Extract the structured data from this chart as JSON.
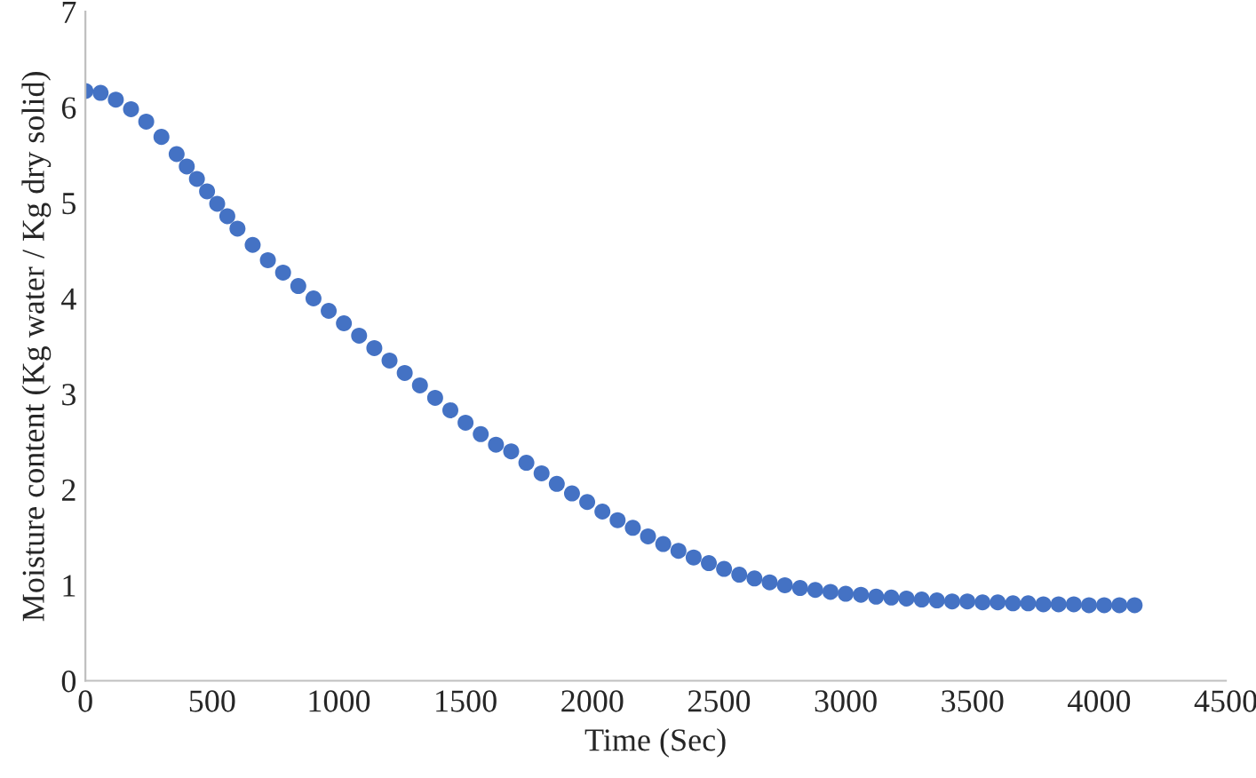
{
  "chart_data": {
    "type": "scatter",
    "xlabel": "Time (Sec)",
    "ylabel": "Moisture content (Kg water / Kg dry solid)",
    "xlim": [
      0,
      4500
    ],
    "xticks": [
      0,
      500,
      1000,
      1500,
      2000,
      2500,
      3000,
      3500,
      4000,
      4500
    ],
    "ylim": [
      0,
      7
    ],
    "yticks": [
      0,
      1,
      2,
      3,
      4,
      5,
      6,
      7
    ],
    "grid": false,
    "marker": "circle",
    "series": [
      {
        "color": "#4472c4",
        "x": [
          0,
          60,
          120,
          180,
          240,
          300,
          360,
          400,
          440,
          480,
          520,
          560,
          600,
          660,
          720,
          780,
          840,
          900,
          960,
          1020,
          1080,
          1140,
          1200,
          1260,
          1320,
          1380,
          1440,
          1500,
          1560,
          1620,
          1680,
          1740,
          1800,
          1860,
          1920,
          1980,
          2040,
          2100,
          2160,
          2220,
          2280,
          2340,
          2400,
          2460,
          2520,
          2580,
          2640,
          2700,
          2760,
          2820,
          2880,
          2940,
          3000,
          3060,
          3120,
          3180,
          3240,
          3300,
          3360,
          3420,
          3480,
          3540,
          3600,
          3660,
          3720,
          3780,
          3840,
          3900,
          3960,
          4020,
          4080,
          4140
        ],
        "values": [
          6.17,
          6.15,
          6.08,
          5.98,
          5.85,
          5.69,
          5.51,
          5.38,
          5.25,
          5.12,
          4.99,
          4.86,
          4.73,
          4.56,
          4.4,
          4.27,
          4.13,
          4.0,
          3.87,
          3.74,
          3.61,
          3.48,
          3.35,
          3.22,
          3.09,
          2.96,
          2.83,
          2.7,
          2.58,
          2.47,
          2.4,
          2.28,
          2.17,
          2.06,
          1.96,
          1.87,
          1.77,
          1.68,
          1.6,
          1.51,
          1.43,
          1.36,
          1.29,
          1.23,
          1.17,
          1.11,
          1.07,
          1.03,
          1.0,
          0.97,
          0.95,
          0.93,
          0.91,
          0.9,
          0.88,
          0.87,
          0.86,
          0.85,
          0.84,
          0.83,
          0.83,
          0.82,
          0.82,
          0.81,
          0.81,
          0.8,
          0.8,
          0.8,
          0.79,
          0.79,
          0.79,
          0.79
        ]
      }
    ]
  }
}
